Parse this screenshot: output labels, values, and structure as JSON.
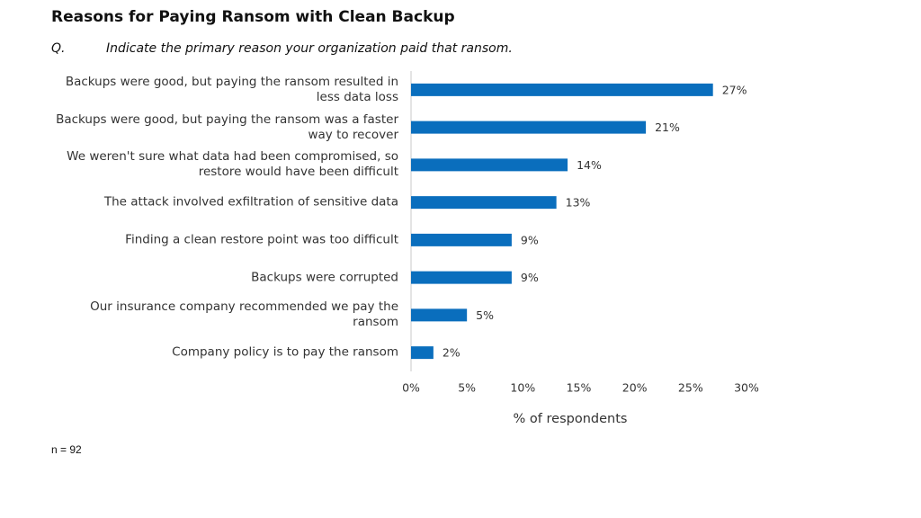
{
  "chart_data": {
    "type": "hbar",
    "title": "Reasons for Paying Ransom with Clean Backup",
    "question_label": "Q.",
    "subtitle": "Indicate the primary reason your organization paid that ransom.",
    "categories": [
      "Backups were good, but paying the ransom resulted in less data loss",
      "Backups were good, but paying the ransom was a faster way to recover",
      "We weren't sure what data had been compromised, so restore would have been difficult",
      "The attack involved exfiltration of sensitive data",
      "Finding a clean restore point was too difficult",
      "Backups were corrupted",
      "Our insurance company recommended we pay the ransom",
      "Company policy is to pay the ransom"
    ],
    "values": [
      27,
      21,
      14,
      13,
      9,
      9,
      5,
      2
    ],
    "value_labels": [
      "27%",
      "21%",
      "14%",
      "13%",
      "9%",
      "9%",
      "5%",
      "2%"
    ],
    "color": "#0a6ebd",
    "xlim": [
      0,
      30
    ],
    "xticks": [
      {
        "value": 0,
        "label": "0%"
      },
      {
        "value": 5,
        "label": "5%"
      },
      {
        "value": 10,
        "label": "10%"
      },
      {
        "value": 15,
        "label": "15%"
      },
      {
        "value": 20,
        "label": "20%"
      },
      {
        "value": 25,
        "label": "25%"
      },
      {
        "value": 30,
        "label": "30%"
      }
    ],
    "x_label": "% of respondents",
    "note": "n = 92"
  }
}
